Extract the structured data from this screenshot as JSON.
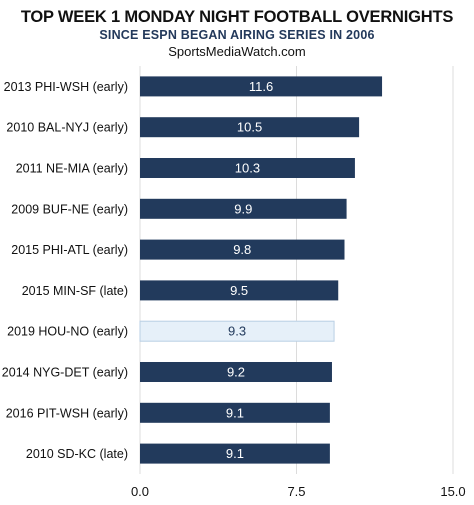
{
  "chart_data": {
    "type": "bar",
    "orientation": "horizontal",
    "title": "TOP WEEK 1 MONDAY NIGHT FOOTBALL OVERNIGHTS",
    "subtitle": "SINCE ESPN BEGAN AIRING SERIES IN 2006",
    "source": "SportsMediaWatch.com",
    "categories": [
      "2013 PHI-WSH (early)",
      "2010 BAL-NYJ (early)",
      "2011 NE-MIA (early)",
      "2009 BUF-NE (early)",
      "2015 PHI-ATL (early)",
      "2015 MIN-SF (late)",
      "2019 HOU-NO (early)",
      "2014 NYG-DET (early)",
      "2016 PIT-WSH (early)",
      "2010 SD-KC (late)"
    ],
    "values": [
      11.6,
      10.5,
      10.3,
      9.9,
      9.8,
      9.5,
      9.3,
      9.2,
      9.1,
      9.1
    ],
    "value_labels": [
      "11.6",
      "10.5",
      "10.3",
      "9.9",
      "9.8",
      "9.5",
      "9.3",
      "9.2",
      "9.1",
      "9.1"
    ],
    "highlighted_category": "2019 HOU-NO (early)",
    "xlim": [
      0,
      15
    ],
    "x_ticks": [
      "0.0",
      "7.5",
      "15.0"
    ],
    "x_tick_values": [
      0,
      7.5,
      15
    ],
    "grid": true,
    "legend": "none",
    "colors": {
      "bar": "#223a5c",
      "bar_highlight": "#e6f0f9",
      "bar_highlight_border": "#b9cfe4",
      "label_on_bar": "#ffffff",
      "label_on_highlight": "#223a5c",
      "grid": "#dcdcdc"
    }
  }
}
